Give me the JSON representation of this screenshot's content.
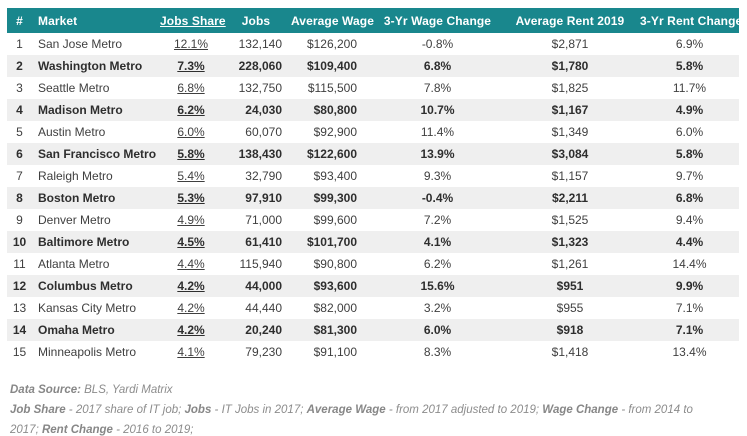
{
  "colors": {
    "header_bg": "#19878d",
    "header_text": "#ffffff",
    "alt_row_bg": "#efefef",
    "body_text": "#3f3f3f",
    "footnote_text": "#8c8c8c"
  },
  "chart_data": {
    "type": "table",
    "title": "",
    "columns": [
      {
        "label": "#",
        "underline": false
      },
      {
        "label": "Market",
        "underline": false
      },
      {
        "label": "Jobs Share",
        "underline": true
      },
      {
        "label": "Jobs",
        "underline": false
      },
      {
        "label": "Average Wage",
        "underline": false
      },
      {
        "label": "3-Yr Wage Change",
        "underline": false
      },
      {
        "label": "Average Rent 2019",
        "underline": false
      },
      {
        "label": "3-Yr Rent Change",
        "underline": false
      }
    ],
    "rows": [
      [
        "1",
        "San Jose Metro",
        "12.1%",
        "132,140",
        "$126,200",
        "-0.8%",
        "$2,871",
        "6.9%"
      ],
      [
        "2",
        "Washington Metro",
        "7.3%",
        "228,060",
        "$109,400",
        "6.8%",
        "$1,780",
        "5.8%"
      ],
      [
        "3",
        "Seattle Metro",
        "6.8%",
        "132,750",
        "$115,500",
        "7.8%",
        "$1,825",
        "11.7%"
      ],
      [
        "4",
        "Madison Metro",
        "6.2%",
        "24,030",
        "$80,800",
        "10.7%",
        "$1,167",
        "4.9%"
      ],
      [
        "5",
        "Austin Metro",
        "6.0%",
        "60,070",
        "$92,900",
        "11.4%",
        "$1,349",
        "6.0%"
      ],
      [
        "6",
        "San Francisco Metro",
        "5.8%",
        "138,430",
        "$122,600",
        "13.9%",
        "$3,084",
        "5.8%"
      ],
      [
        "7",
        "Raleigh Metro",
        "5.4%",
        "32,790",
        "$93,400",
        "9.3%",
        "$1,157",
        "9.7%"
      ],
      [
        "8",
        "Boston Metro",
        "5.3%",
        "97,910",
        "$99,300",
        "-0.4%",
        "$2,211",
        "6.8%"
      ],
      [
        "9",
        "Denver Metro",
        "4.9%",
        "71,000",
        "$99,600",
        "7.2%",
        "$1,525",
        "9.4%"
      ],
      [
        "10",
        "Baltimore Metro",
        "4.5%",
        "61,410",
        "$101,700",
        "4.1%",
        "$1,323",
        "4.4%"
      ],
      [
        "11",
        "Atlanta Metro",
        "4.4%",
        "115,940",
        "$90,800",
        "6.2%",
        "$1,261",
        "14.4%"
      ],
      [
        "12",
        "Columbus Metro",
        "4.2%",
        "44,000",
        "$93,600",
        "15.6%",
        "$951",
        "9.9%"
      ],
      [
        "13",
        "Kansas City Metro",
        "4.2%",
        "44,440",
        "$82,000",
        "3.2%",
        "$955",
        "7.1%"
      ],
      [
        "14",
        "Omaha Metro",
        "4.2%",
        "20,240",
        "$81,300",
        "6.0%",
        "$918",
        "7.1%"
      ],
      [
        "15",
        "Minneapolis Metro",
        "4.1%",
        "79,230",
        "$91,100",
        "8.3%",
        "$1,418",
        "13.4%"
      ]
    ]
  },
  "footer": {
    "line1": [
      {
        "text": "Data Source:",
        "bold": true
      },
      {
        "text": " BLS, Yardi Matrix",
        "bold": false
      }
    ],
    "line2": [
      {
        "text": "Job Share",
        "bold": true
      },
      {
        "text": " - 2017 share of IT job; ",
        "bold": false
      },
      {
        "text": "Jobs",
        "bold": true
      },
      {
        "text": " - IT Jobs in 2017; ",
        "bold": false
      },
      {
        "text": "Average Wage",
        "bold": true
      },
      {
        "text": " - from 2017 adjusted to 2019; ",
        "bold": false
      },
      {
        "text": "Wage Change",
        "bold": true
      },
      {
        "text": " -  from 2014 to 2017;  ",
        "bold": false
      },
      {
        "text": "Rent Change",
        "bold": true
      },
      {
        "text": " - 2016 to 2019;",
        "bold": false
      }
    ]
  }
}
